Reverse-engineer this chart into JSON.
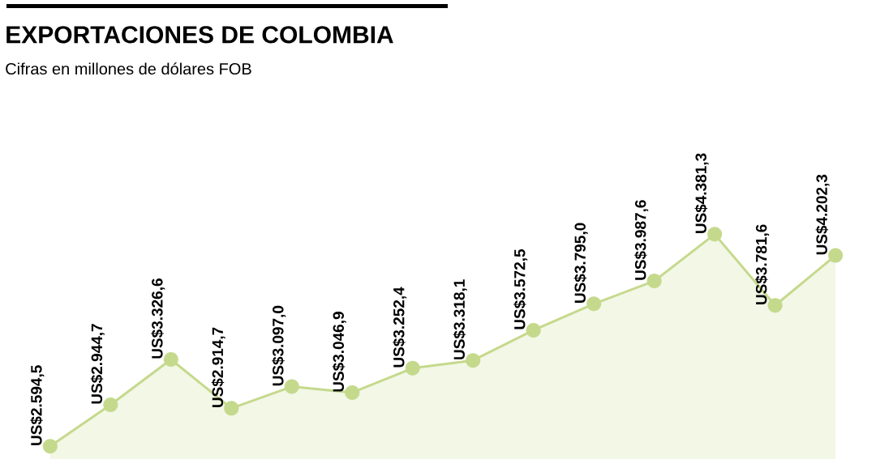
{
  "chart_data": {
    "type": "area",
    "title": "EXPORTACIONES DE COLOMBIA",
    "subtitle": "Cifras en millones de dólares FOB",
    "categories": [
      null,
      null,
      null,
      null,
      null,
      null,
      null,
      null,
      null,
      null,
      null,
      null,
      null,
      null
    ],
    "values": [
      2594.5,
      2944.7,
      3326.6,
      2914.7,
      3097.0,
      3046.9,
      3252.4,
      3318.1,
      3572.5,
      3795.0,
      3987.6,
      4381.3,
      3781.6,
      4202.3
    ],
    "value_labels": [
      "US$2.594,5",
      "US$2.944,7",
      "US$3.326,6",
      "US$2.914,7",
      "US$3.097,0",
      "US$3.046,9",
      "US$3.252,4",
      "US$3.318,1",
      "US$3.572,5",
      "US$3.795,0",
      "US$3.987,6",
      "US$4.381,3",
      "US$3.781,6",
      "US$4.202,3"
    ],
    "color": "#c5d98c",
    "marker": "circle"
  }
}
